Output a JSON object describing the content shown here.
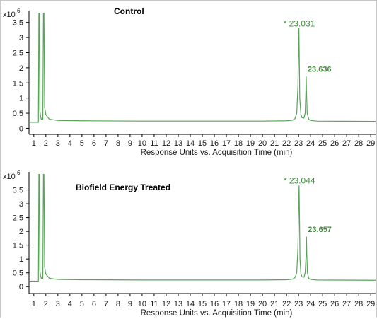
{
  "chart_data": [
    {
      "type": "line",
      "title": "Control",
      "xlabel": "Response Units vs. Acquisition Time (min)",
      "ylabel": "",
      "y_unit_prefix": "x10",
      "y_unit_exp": "6",
      "xlim": [
        0.6,
        29.4
      ],
      "ylim": [
        -0.2,
        3.75
      ],
      "x_ticks": [
        1,
        2,
        3,
        4,
        5,
        6,
        7,
        8,
        9,
        10,
        11,
        12,
        13,
        14,
        15,
        16,
        17,
        18,
        19,
        20,
        21,
        22,
        23,
        24,
        25,
        26,
        27,
        28,
        29
      ],
      "y_ticks": [
        0,
        0.5,
        1,
        1.5,
        2,
        2.5,
        3,
        3.5
      ],
      "y_tick_labels": [
        "0",
        "0.5",
        "1",
        "1.5",
        "2",
        "2.5",
        "3",
        "3.5"
      ],
      "line_color": "#5aa35a",
      "series": [
        {
          "x": [
            0.6,
            1.38,
            1.42,
            1.46,
            1.5,
            1.56,
            1.62,
            1.75,
            1.8,
            1.84,
            1.9,
            2.0,
            2.3,
            3,
            5,
            10,
            15,
            20,
            22.0,
            22.5,
            22.7,
            22.85,
            22.95,
            23.0,
            23.031,
            23.06,
            23.1,
            23.2,
            23.3,
            23.45,
            23.55,
            23.6,
            23.636,
            23.67,
            23.72,
            23.85,
            24.0,
            24.5,
            29.4
          ],
          "y": [
            0.2,
            0.2,
            3.9,
            3.9,
            0.6,
            0.4,
            0.3,
            0.3,
            3.9,
            3.9,
            0.7,
            0.45,
            0.3,
            0.26,
            0.25,
            0.24,
            0.24,
            0.24,
            0.25,
            0.27,
            0.32,
            0.5,
            1.4,
            2.8,
            3.3,
            2.4,
            1.0,
            0.45,
            0.35,
            0.34,
            0.5,
            1.1,
            1.7,
            1.1,
            0.5,
            0.3,
            0.26,
            0.24,
            0.23
          ]
        }
      ],
      "annotations": [
        {
          "text": "* 23.031",
          "x": 23.031,
          "y": 3.3
        },
        {
          "text": "23.636",
          "x": 23.636,
          "y": 1.7
        }
      ]
    },
    {
      "type": "line",
      "title": "Biofield Energy Treated",
      "xlabel": "Response Units vs. Acquisition Time (min)",
      "ylabel": "",
      "y_unit_prefix": "x10",
      "y_unit_exp": "6",
      "xlim": [
        0.6,
        29.4
      ],
      "ylim": [
        -0.25,
        4.0
      ],
      "x_ticks": [
        1,
        2,
        3,
        4,
        5,
        6,
        7,
        8,
        9,
        10,
        11,
        12,
        13,
        14,
        15,
        16,
        17,
        18,
        19,
        20,
        21,
        22,
        23,
        24,
        25,
        26,
        27,
        28,
        29
      ],
      "y_ticks": [
        0,
        0.5,
        1,
        1.5,
        2,
        2.5,
        3,
        3.5
      ],
      "y_tick_labels": [
        "0",
        "0.5",
        "1",
        "1.5",
        "2",
        "2.5",
        "3",
        "3.5"
      ],
      "line_color": "#5aa35a",
      "series": [
        {
          "x": [
            0.6,
            1.38,
            1.42,
            1.46,
            1.5,
            1.56,
            1.62,
            1.75,
            1.8,
            1.84,
            1.9,
            2.0,
            2.3,
            3,
            5,
            10,
            15,
            20,
            22.0,
            22.5,
            22.7,
            22.85,
            22.95,
            23.0,
            23.044,
            23.08,
            23.12,
            23.2,
            23.3,
            23.45,
            23.55,
            23.62,
            23.657,
            23.69,
            23.74,
            23.85,
            24.0,
            24.5,
            29.4
          ],
          "y": [
            0.2,
            0.2,
            4.1,
            4.1,
            0.6,
            0.4,
            0.3,
            0.3,
            4.1,
            4.1,
            0.7,
            0.45,
            0.3,
            0.26,
            0.25,
            0.24,
            0.24,
            0.24,
            0.25,
            0.27,
            0.32,
            0.5,
            1.4,
            2.9,
            3.65,
            2.5,
            1.0,
            0.45,
            0.35,
            0.34,
            0.5,
            1.1,
            1.8,
            1.1,
            0.5,
            0.3,
            0.26,
            0.24,
            0.23
          ]
        }
      ],
      "annotations": [
        {
          "text": "* 23.044",
          "x": 23.044,
          "y": 3.65
        },
        {
          "text": "23.657",
          "x": 23.657,
          "y": 1.8
        }
      ]
    }
  ]
}
